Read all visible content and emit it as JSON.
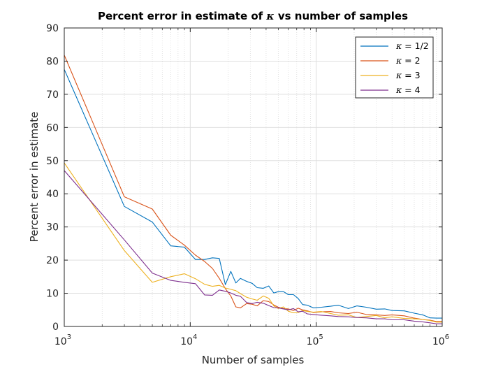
{
  "chart_data": {
    "type": "line",
    "title_prefix": "Percent error in estimate of ",
    "title_symbol": "κ",
    "title_suffix": " vs number of samples",
    "xlabel": "Number of samples",
    "ylabel": "Percent error in estimate",
    "x_scale": "log",
    "xlim": [
      1000,
      1000000
    ],
    "ylim": [
      0,
      90
    ],
    "grid": true,
    "minor_grid_x": true,
    "legend_position": "top-right",
    "y_ticks": [
      "0",
      "10",
      "20",
      "30",
      "40",
      "50",
      "60",
      "70",
      "80",
      "90"
    ],
    "x_ticks": [
      {
        "base": "10",
        "exp": "3"
      },
      {
        "base": "10",
        "exp": "4"
      },
      {
        "base": "10",
        "exp": "5"
      },
      {
        "base": "10",
        "exp": "6"
      }
    ],
    "series": [
      {
        "symbol": "κ",
        "label_suffix": " = 1/2",
        "color": "#0072BD",
        "points": [
          [
            1000,
            77.5
          ],
          [
            3000,
            36.2
          ],
          [
            5000,
            31.5
          ],
          [
            7000,
            24.3
          ],
          [
            9000,
            23.9
          ],
          [
            11000,
            20.2
          ],
          [
            13000,
            20.2
          ],
          [
            15000,
            20.7
          ],
          [
            17000,
            20.5
          ],
          [
            19000,
            12.6
          ],
          [
            21000,
            16.6
          ],
          [
            23000,
            13.1
          ],
          [
            25000,
            14.5
          ],
          [
            28000,
            13.6
          ],
          [
            31000,
            13.0
          ],
          [
            34000,
            11.7
          ],
          [
            38000,
            11.5
          ],
          [
            42000,
            12.2
          ],
          [
            46000,
            10.1
          ],
          [
            50000,
            10.5
          ],
          [
            55000,
            10.5
          ],
          [
            60000,
            9.6
          ],
          [
            66000,
            9.6
          ],
          [
            72000,
            8.4
          ],
          [
            78000,
            6.6
          ],
          [
            85000,
            6.4
          ],
          [
            95000,
            5.6
          ],
          [
            110000,
            5.8
          ],
          [
            130000,
            6.1
          ],
          [
            150000,
            6.4
          ],
          [
            180000,
            5.4
          ],
          [
            210000,
            6.2
          ],
          [
            250000,
            5.8
          ],
          [
            300000,
            5.2
          ],
          [
            350000,
            5.3
          ],
          [
            400000,
            4.8
          ],
          [
            500000,
            4.7
          ],
          [
            600000,
            4.0
          ],
          [
            700000,
            3.5
          ],
          [
            800000,
            2.6
          ],
          [
            900000,
            2.5
          ],
          [
            1000000,
            2.5
          ]
        ]
      },
      {
        "symbol": "κ",
        "label_suffix": " = 2",
        "color": "#D95319",
        "points": [
          [
            1000,
            81.8
          ],
          [
            3000,
            39.1
          ],
          [
            5000,
            35.4
          ],
          [
            7000,
            27.5
          ],
          [
            9000,
            24.5
          ],
          [
            11000,
            21.5
          ],
          [
            13000,
            19.6
          ],
          [
            15000,
            17.5
          ],
          [
            17000,
            14.5
          ],
          [
            19000,
            11.4
          ],
          [
            21000,
            9.2
          ],
          [
            23000,
            5.9
          ],
          [
            25000,
            5.6
          ],
          [
            28000,
            6.9
          ],
          [
            31000,
            6.7
          ],
          [
            34000,
            6.2
          ],
          [
            38000,
            7.8
          ],
          [
            42000,
            7.5
          ],
          [
            46000,
            6.5
          ],
          [
            50000,
            5.8
          ],
          [
            55000,
            5.4
          ],
          [
            60000,
            5.3
          ],
          [
            66000,
            4.8
          ],
          [
            72000,
            5.5
          ],
          [
            78000,
            5.0
          ],
          [
            85000,
            4.7
          ],
          [
            95000,
            4.2
          ],
          [
            110000,
            4.4
          ],
          [
            130000,
            4.5
          ],
          [
            150000,
            4.1
          ],
          [
            180000,
            3.9
          ],
          [
            210000,
            4.3
          ],
          [
            250000,
            3.6
          ],
          [
            300000,
            3.5
          ],
          [
            350000,
            3.3
          ],
          [
            400000,
            3.5
          ],
          [
            500000,
            3.2
          ],
          [
            600000,
            2.5
          ],
          [
            700000,
            2.1
          ],
          [
            800000,
            1.9
          ],
          [
            900000,
            1.5
          ],
          [
            1000000,
            1.5
          ]
        ]
      },
      {
        "symbol": "κ",
        "label_suffix": " = 3",
        "color": "#EDB120",
        "points": [
          [
            1000,
            49.3
          ],
          [
            3000,
            22.9
          ],
          [
            5000,
            13.3
          ],
          [
            7000,
            15.0
          ],
          [
            9000,
            15.9
          ],
          [
            11000,
            14.4
          ],
          [
            13000,
            12.7
          ],
          [
            15000,
            12.1
          ],
          [
            17000,
            12.4
          ],
          [
            19000,
            11.6
          ],
          [
            21000,
            11.2
          ],
          [
            23000,
            10.8
          ],
          [
            25000,
            9.9
          ],
          [
            28000,
            8.8
          ],
          [
            31000,
            8.3
          ],
          [
            34000,
            7.9
          ],
          [
            38000,
            9.2
          ],
          [
            42000,
            8.5
          ],
          [
            46000,
            6.2
          ],
          [
            50000,
            5.4
          ],
          [
            55000,
            5.9
          ],
          [
            60000,
            4.6
          ],
          [
            66000,
            4.1
          ],
          [
            72000,
            4.2
          ],
          [
            78000,
            4.8
          ],
          [
            85000,
            4.5
          ],
          [
            95000,
            4.3
          ],
          [
            110000,
            4.5
          ],
          [
            130000,
            3.9
          ],
          [
            150000,
            3.4
          ],
          [
            180000,
            3.5
          ],
          [
            210000,
            2.7
          ],
          [
            250000,
            3.0
          ],
          [
            300000,
            3.3
          ],
          [
            350000,
            2.6
          ],
          [
            400000,
            2.9
          ],
          [
            500000,
            2.4
          ],
          [
            600000,
            2.3
          ],
          [
            700000,
            2.1
          ],
          [
            800000,
            1.8
          ],
          [
            900000,
            1.3
          ],
          [
            1000000,
            1.3
          ]
        ]
      },
      {
        "symbol": "κ",
        "label_suffix": " = 4",
        "color": "#7E2F8E",
        "points": [
          [
            1000,
            47.0
          ],
          [
            3000,
            26.1
          ],
          [
            5000,
            16.1
          ],
          [
            7000,
            13.9
          ],
          [
            9000,
            13.3
          ],
          [
            11000,
            12.9
          ],
          [
            13000,
            9.5
          ],
          [
            15000,
            9.4
          ],
          [
            17000,
            11.0
          ],
          [
            19000,
            10.6
          ],
          [
            21000,
            10.1
          ],
          [
            23000,
            9.4
          ],
          [
            25000,
            9.1
          ],
          [
            28000,
            7.2
          ],
          [
            31000,
            6.9
          ],
          [
            34000,
            7.3
          ],
          [
            38000,
            7.0
          ],
          [
            42000,
            6.3
          ],
          [
            46000,
            5.7
          ],
          [
            50000,
            5.6
          ],
          [
            55000,
            5.3
          ],
          [
            60000,
            5.0
          ],
          [
            66000,
            5.4
          ],
          [
            72000,
            4.4
          ],
          [
            78000,
            4.6
          ],
          [
            85000,
            3.8
          ],
          [
            95000,
            3.6
          ],
          [
            110000,
            3.4
          ],
          [
            130000,
            3.2
          ],
          [
            150000,
            3.0
          ],
          [
            180000,
            2.9
          ],
          [
            210000,
            2.7
          ],
          [
            250000,
            2.6
          ],
          [
            300000,
            2.3
          ],
          [
            350000,
            2.3
          ],
          [
            400000,
            2.0
          ],
          [
            500000,
            2.0
          ],
          [
            600000,
            1.6
          ],
          [
            700000,
            1.4
          ],
          [
            800000,
            1.1
          ],
          [
            900000,
            0.8
          ],
          [
            1000000,
            0.8
          ]
        ]
      }
    ]
  }
}
